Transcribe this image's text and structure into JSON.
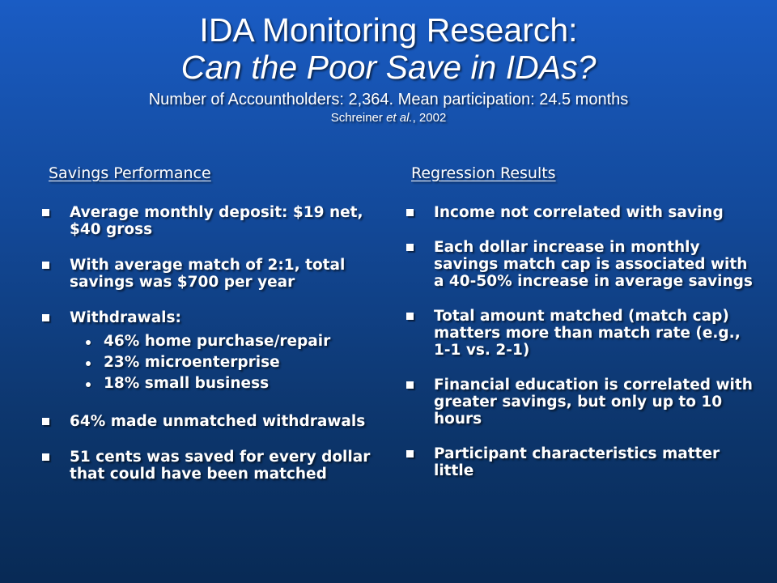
{
  "slide": {
    "title_line1": "IDA Monitoring Research:",
    "title_line2": "Can the Poor Save in IDAs?",
    "subtitle": "Number of Accountholders: 2,364.  Mean participation: 24.5 months",
    "citation_author": "Schreiner",
    "citation_etal": "et al.",
    "citation_year": ", 2002"
  },
  "left": {
    "heading": "Savings Performance",
    "items": [
      {
        "text": "Average monthly deposit: $19 net, $40 gross"
      },
      {
        "text": "With average match of 2:1, total savings was $700 per year"
      },
      {
        "text": "Withdrawals:",
        "sub": [
          "46% home purchase/repair",
          "23% microenterprise",
          "18% small business"
        ]
      },
      {
        "text": "64% made unmatched withdrawals"
      },
      {
        "text": "51 cents was saved for every dollar that could have been matched"
      }
    ]
  },
  "right": {
    "heading": "Regression Results",
    "items": [
      {
        "text": "Income not correlated with saving"
      },
      {
        "text": "Each dollar increase in monthly savings match cap is associated with a 40-50% increase in average savings"
      },
      {
        "text": "Total amount matched (match cap) matters more than match rate (e.g., 1-1 vs. 2-1)"
      },
      {
        "text": "Financial education is correlated with greater savings, but only up to 10 hours"
      },
      {
        "text": "Participant characteristics matter little"
      }
    ]
  }
}
